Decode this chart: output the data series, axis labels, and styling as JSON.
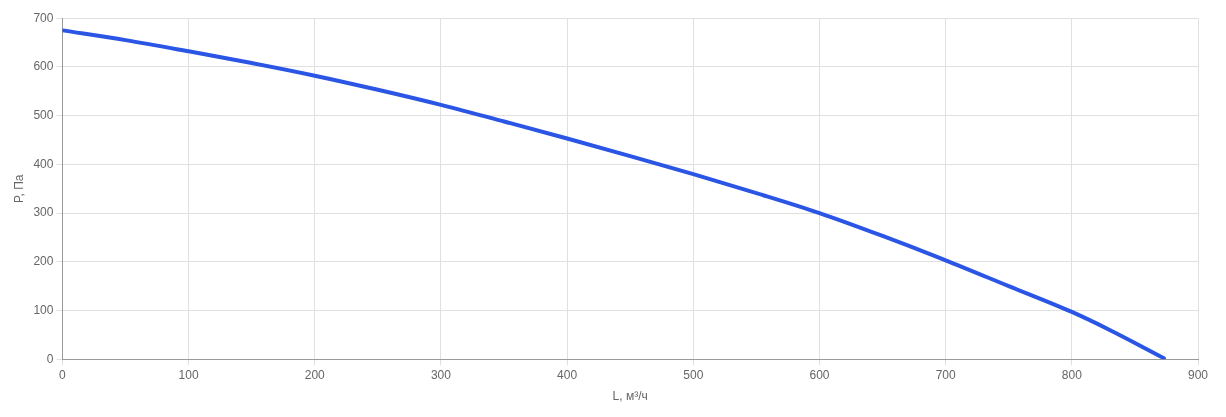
{
  "chart_data": {
    "type": "line",
    "xlabel": "L, м³/ч",
    "ylabel": "P, Па",
    "x": [
      0,
      50,
      100,
      150,
      200,
      250,
      300,
      350,
      400,
      450,
      500,
      550,
      600,
      650,
      700,
      750,
      800,
      830,
      873
    ],
    "series": [
      {
        "color": "#2a55e5",
        "values": [
          675,
          655,
          632,
          608,
          582,
          553,
          522,
          488,
          453,
          417,
          380,
          341,
          300,
          253,
          203,
          150,
          97,
          60,
          2
        ]
      }
    ],
    "xlim": [
      0,
      900
    ],
    "xticks": [
      0,
      100,
      200,
      300,
      400,
      500,
      600,
      700,
      800,
      900
    ],
    "ylim": [
      0,
      700
    ],
    "yticks": [
      0,
      100,
      200,
      300,
      400,
      500,
      600,
      700
    ],
    "grid": true,
    "legend": false,
    "marker": "none",
    "line_style": "solid"
  }
}
